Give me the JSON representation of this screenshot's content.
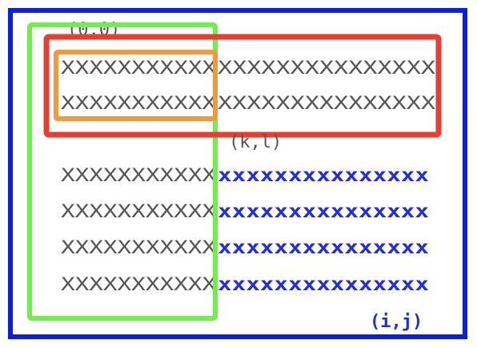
{
  "labels": {
    "origin": "(0,0)",
    "kl": "(k,l)",
    "ij": "(i,j)"
  },
  "rows": [
    {
      "gray": "XXXXXXXXXXX",
      "right": "XXXXXXXXXXXXXXX",
      "right_style": "gray"
    },
    {
      "gray": "XXXXXXXXXXX",
      "right": "XXXXXXXXXXXXXXX",
      "right_style": "gray"
    },
    {
      "gray": "XXXXXXXXXXX",
      "right": "xxxxxxxxxxxxxxx",
      "right_style": "blue"
    },
    {
      "gray": "XXXXXXXXXXX",
      "right": "xxxxxxxxxxxxxxx",
      "right_style": "blue"
    },
    {
      "gray": "XXXXXXXXXXX",
      "right": "xxxxxxxxxxxxxxx",
      "right_style": "blue"
    },
    {
      "gray": "XXXXXXXXXXX",
      "right": "xxxxxxxxxxxxxxx",
      "right_style": "blue"
    }
  ],
  "colors": {
    "outer_box": "#0a1ee6",
    "red_box": "#ee3b2b",
    "orange_box": "#f29a3a",
    "green_box": "#6cf04a",
    "gray_text": "#555555",
    "blue_text": "#1f2cf0"
  }
}
